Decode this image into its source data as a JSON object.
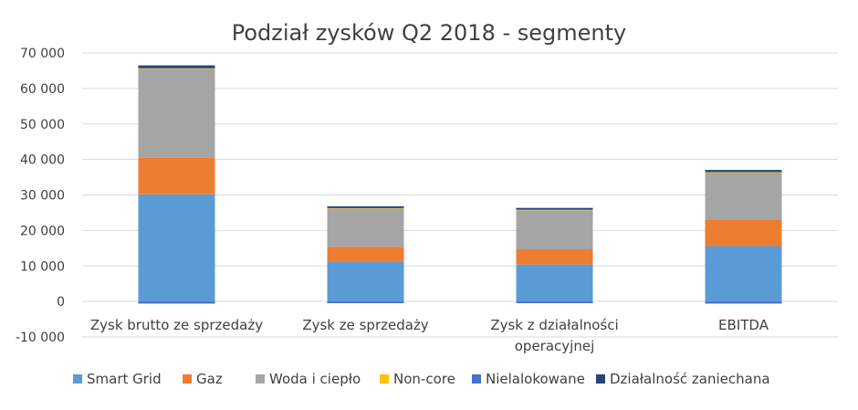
{
  "chart_data": {
    "type": "bar",
    "stacked": true,
    "title": "Podział zysków Q2 2018 - segmenty",
    "categories": [
      [
        "Zysk brutto ze sprzedaży"
      ],
      [
        "Zysk ze sprzedaży"
      ],
      [
        "Zysk z działalności",
        "operacyjnej"
      ],
      [
        "EBITDA"
      ]
    ],
    "ylim": [
      -10000,
      70000
    ],
    "yticks": [
      -10000,
      0,
      10000,
      20000,
      30000,
      40000,
      50000,
      60000,
      70000
    ],
    "ytick_labels": [
      "-10 000",
      "0",
      "10 000",
      "20 000",
      "30 000",
      "40 000",
      "50 000",
      "60 000",
      "70 000"
    ],
    "grid": true,
    "legend_position": "bottom",
    "series": [
      {
        "name": "Smart Grid",
        "color": "#5B9BD5",
        "values": [
          30200,
          11200,
          10400,
          15600
        ]
      },
      {
        "name": "Gaz",
        "color": "#ED7D31",
        "values": [
          10300,
          4200,
          4300,
          7500
        ]
      },
      {
        "name": "Woda i ciepło",
        "color": "#A5A5A5",
        "values": [
          25000,
          10800,
          11000,
          13200
        ]
      },
      {
        "name": "Non-core",
        "color": "#FFC000",
        "values": [
          200,
          100,
          150,
          150
        ]
      },
      {
        "name": "Nielalokowane",
        "color": "#4472C4",
        "values": [
          -600,
          -500,
          -500,
          -600
        ]
      },
      {
        "name": "Działalność zaniechana",
        "color": "#264478",
        "values": [
          800,
          500,
          500,
          600
        ]
      }
    ]
  }
}
